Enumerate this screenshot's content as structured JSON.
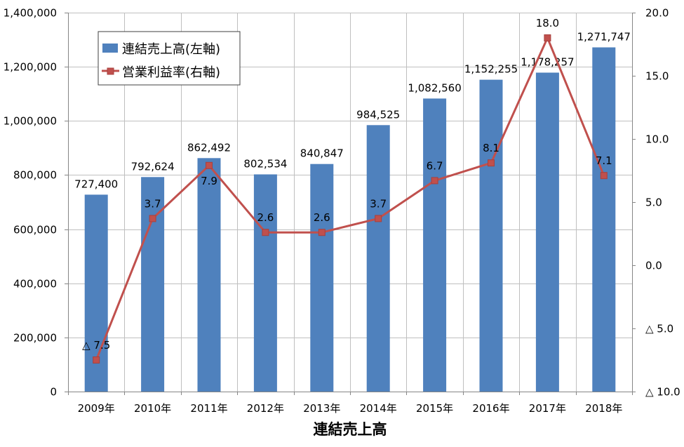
{
  "chart_data": {
    "type": "bar",
    "categories": [
      "2009年",
      "2010年",
      "2011年",
      "2012年",
      "2013年",
      "2014年",
      "2015年",
      "2016年",
      "2017年",
      "2018年"
    ],
    "series": [
      {
        "name": "連結売上高(左軸)",
        "type": "bar",
        "axis": "left",
        "color": "#4F81BD",
        "values": [
          727400,
          792624,
          862492,
          802534,
          840847,
          984525,
          1082560,
          1152255,
          1178257,
          1271747
        ],
        "labels": [
          "727,400",
          "792,624",
          "862,492",
          "802,534",
          "840,847",
          "984,525",
          "1,082,560",
          "1,152,255",
          "1,178,257",
          "1,271,747"
        ]
      },
      {
        "name": "営業利益率(右軸)",
        "type": "line",
        "axis": "right",
        "marker": "square",
        "color": "#C0504D",
        "values": [
          -7.5,
          3.7,
          7.9,
          2.6,
          2.6,
          3.7,
          6.7,
          8.1,
          18.0,
          7.1
        ],
        "labels": [
          "△ 7.5",
          "3.7",
          "7.9",
          "2.6",
          "2.6",
          "3.7",
          "6.7",
          "8.1",
          "18.0",
          "7.1"
        ]
      }
    ],
    "xlabel": "連結売上高",
    "y_left": {
      "range": [
        0,
        1400000
      ],
      "ticks": [
        0,
        200000,
        400000,
        600000,
        800000,
        1000000,
        1200000,
        1400000
      ],
      "tick_labels": [
        "0",
        "200,000",
        "400,000",
        "600,000",
        "800,000",
        "1,000,000",
        "1,200,000",
        "1,400,000"
      ]
    },
    "y_right": {
      "range": [
        -10,
        20
      ],
      "ticks": [
        -10,
        -5,
        0,
        5,
        10,
        15,
        20
      ],
      "tick_labels": [
        "△ 10.0",
        "△ 5.0",
        "0.0",
        "5.0",
        "10.0",
        "15.0",
        "20.0"
      ]
    },
    "grid": true,
    "legend": "top-left"
  }
}
